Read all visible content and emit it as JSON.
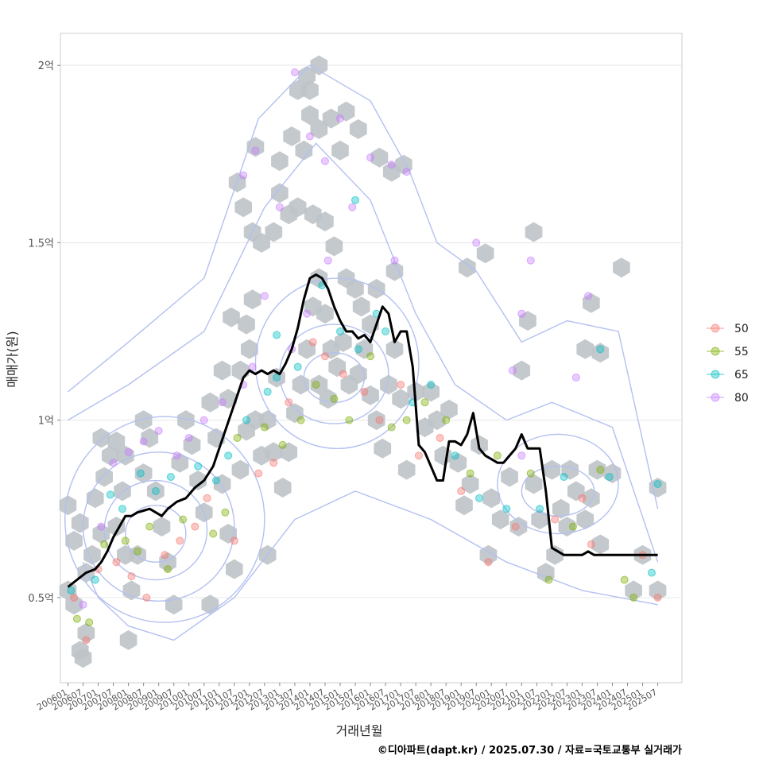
{
  "chart_data": {
    "type": "scatter",
    "xlabel": "거래년월",
    "ylabel": "매매가(원)",
    "caption": "©디아파트(dapt.kr) / 2025.07.30 / 자료=국토교통부 실거래가",
    "x_tick_labels": [
      "200601",
      "200607",
      "200701",
      "200707",
      "200801",
      "200807",
      "200901",
      "200907",
      "201001",
      "201007",
      "201101",
      "201107",
      "201201",
      "201207",
      "201301",
      "201307",
      "201401",
      "201407",
      "201501",
      "201507",
      "201601",
      "201607",
      "201701",
      "201707",
      "201801",
      "201807",
      "201901",
      "201907",
      "202001",
      "202007",
      "202101",
      "202107",
      "202201",
      "202207",
      "202301",
      "202307",
      "202401",
      "202407",
      "202501",
      "202507"
    ],
    "y_ticks": [
      {
        "value": 0.5,
        "label": "0.5억"
      },
      {
        "value": 1.0,
        "label": "1억"
      },
      {
        "value": 1.5,
        "label": "1.5억"
      },
      {
        "value": 2.0,
        "label": "2억"
      }
    ],
    "xlim": [
      2005.75,
      2026.3
    ],
    "ylim": [
      0.26,
      2.09
    ],
    "y_unit": "억",
    "grid": true,
    "legend_position": "right",
    "legend": [
      {
        "label": "50",
        "color": "#F8766D"
      },
      {
        "label": "55",
        "color": "#7CAE00"
      },
      {
        "value": "65",
        "label": "65",
        "color": "#00BFC4"
      },
      {
        "label": "80",
        "color": "#C77CFF"
      }
    ],
    "hexbin_color": "#BEC3C8",
    "contour_color": "#B4C0F0",
    "trend_line": {
      "color": "#000000",
      "x": [
        2006.0,
        2006.3,
        2006.6,
        2006.9,
        2007.1,
        2007.3,
        2007.5,
        2007.7,
        2007.9,
        2008.1,
        2008.3,
        2008.5,
        2008.7,
        2008.9,
        2009.1,
        2009.3,
        2009.6,
        2009.9,
        2010.2,
        2010.5,
        2010.8,
        2011.0,
        2011.2,
        2011.4,
        2011.6,
        2011.8,
        2012.0,
        2012.2,
        2012.4,
        2012.6,
        2012.8,
        2013.0,
        2013.2,
        2013.4,
        2013.6,
        2013.8,
        2014.0,
        2014.2,
        2014.4,
        2014.6,
        2014.8,
        2015.0,
        2015.2,
        2015.4,
        2015.6,
        2015.8,
        2016.0,
        2016.2,
        2016.4,
        2016.6,
        2016.8,
        2017.0,
        2017.2,
        2017.4,
        2017.6,
        2017.8,
        2018.0,
        2018.2,
        2018.4,
        2018.6,
        2018.8,
        2019.0,
        2019.2,
        2019.4,
        2019.6,
        2019.8,
        2020.0,
        2020.2,
        2020.4,
        2020.6,
        2020.8,
        2021.0,
        2021.2,
        2021.4,
        2021.6,
        2021.8,
        2022.0,
        2022.2,
        2022.4,
        2022.6,
        2022.8,
        2023.0,
        2023.2,
        2023.4,
        2023.6,
        2023.8,
        2024.0,
        2024.2,
        2024.4,
        2024.6,
        2024.8,
        2025.0,
        2025.2,
        2025.5
      ],
      "y": [
        0.53,
        0.55,
        0.57,
        0.58,
        0.6,
        0.63,
        0.67,
        0.7,
        0.73,
        0.73,
        0.74,
        0.745,
        0.75,
        0.74,
        0.73,
        0.75,
        0.77,
        0.78,
        0.81,
        0.83,
        0.87,
        0.92,
        0.97,
        1.02,
        1.07,
        1.12,
        1.14,
        1.13,
        1.14,
        1.13,
        1.14,
        1.13,
        1.16,
        1.2,
        1.26,
        1.34,
        1.4,
        1.41,
        1.4,
        1.37,
        1.32,
        1.28,
        1.25,
        1.25,
        1.23,
        1.24,
        1.22,
        1.27,
        1.32,
        1.3,
        1.22,
        1.25,
        1.25,
        1.15,
        0.93,
        0.91,
        0.87,
        0.83,
        0.83,
        0.94,
        0.94,
        0.93,
        0.96,
        1.02,
        0.92,
        0.9,
        0.89,
        0.88,
        0.88,
        0.9,
        0.92,
        0.96,
        0.92,
        0.92,
        0.92,
        0.8,
        0.64,
        0.63,
        0.62,
        0.62,
        0.62,
        0.62,
        0.63,
        0.62,
        0.62,
        0.62,
        0.62,
        0.62,
        0.62,
        0.62,
        0.62,
        0.62,
        0.62,
        0.62
      ]
    },
    "hex_cells": [
      [
        2006.0,
        0.52
      ],
      [
        2006.2,
        0.48
      ],
      [
        2006.0,
        0.76
      ],
      [
        2006.2,
        0.66
      ],
      [
        2006.4,
        0.71
      ],
      [
        2006.6,
        0.57
      ],
      [
        2006.4,
        0.35
      ],
      [
        2006.6,
        0.4
      ],
      [
        2006.5,
        0.33
      ],
      [
        2006.8,
        0.62
      ],
      [
        2006.9,
        0.78
      ],
      [
        2007.1,
        0.68
      ],
      [
        2007.2,
        0.84
      ],
      [
        2007.4,
        0.9
      ],
      [
        2007.1,
        0.95
      ],
      [
        2007.6,
        0.94
      ],
      [
        2007.9,
        0.9
      ],
      [
        2007.8,
        0.8
      ],
      [
        2007.6,
        0.7
      ],
      [
        2007.9,
        0.62
      ],
      [
        2008.1,
        0.52
      ],
      [
        2008.3,
        0.62
      ],
      [
        2008.0,
        0.38
      ],
      [
        2008.5,
        0.85
      ],
      [
        2008.7,
        0.95
      ],
      [
        2008.5,
        1.0
      ],
      [
        2008.9,
        0.8
      ],
      [
        2009.1,
        0.7
      ],
      [
        2009.3,
        0.6
      ],
      [
        2009.5,
        0.48
      ],
      [
        2009.7,
        0.88
      ],
      [
        2009.9,
        1.0
      ],
      [
        2010.1,
        0.93
      ],
      [
        2010.3,
        0.83
      ],
      [
        2010.5,
        0.74
      ],
      [
        2010.7,
        1.05
      ],
      [
        2010.9,
        0.95
      ],
      [
        2011.1,
        0.82
      ],
      [
        2011.3,
        0.68
      ],
      [
        2011.5,
        0.58
      ],
      [
        2011.7,
        0.86
      ],
      [
        2011.9,
        0.97
      ],
      [
        2010.7,
        0.48
      ],
      [
        2011.1,
        1.14
      ],
      [
        2011.3,
        1.06
      ],
      [
        2011.4,
        1.29
      ],
      [
        2011.7,
        1.14
      ],
      [
        2011.9,
        1.27
      ],
      [
        2012.1,
        1.34
      ],
      [
        2012.0,
        1.2
      ],
      [
        2012.2,
        1.0
      ],
      [
        2012.4,
        0.9
      ],
      [
        2012.6,
        1.0
      ],
      [
        2012.8,
        0.91
      ],
      [
        2012.9,
        1.12
      ],
      [
        2012.6,
        0.62
      ],
      [
        2013.1,
        0.81
      ],
      [
        2013.3,
        0.91
      ],
      [
        2013.5,
        1.02
      ],
      [
        2013.7,
        1.1
      ],
      [
        2013.9,
        1.2
      ],
      [
        2014.1,
        1.32
      ],
      [
        2014.3,
        1.4
      ],
      [
        2014.5,
        1.3
      ],
      [
        2014.7,
        1.2
      ],
      [
        2014.3,
        1.1
      ],
      [
        2014.6,
        1.06
      ],
      [
        2014.9,
        1.15
      ],
      [
        2015.1,
        1.22
      ],
      [
        2015.3,
        1.1
      ],
      [
        2015.6,
        1.13
      ],
      [
        2015.8,
        1.2
      ],
      [
        2016.0,
        1.07
      ],
      [
        2016.2,
        1.0
      ],
      [
        2016.4,
        0.92
      ],
      [
        2016.6,
        1.1
      ],
      [
        2016.8,
        1.2
      ],
      [
        2017.0,
        1.06
      ],
      [
        2017.2,
        0.86
      ],
      [
        2017.5,
        1.08
      ],
      [
        2017.8,
        0.98
      ],
      [
        2018.0,
        1.08
      ],
      [
        2018.2,
        1.0
      ],
      [
        2018.4,
        0.9
      ],
      [
        2018.6,
        1.03
      ],
      [
        2018.9,
        0.88
      ],
      [
        2019.1,
        0.76
      ],
      [
        2019.3,
        0.82
      ],
      [
        2019.6,
        0.93
      ],
      [
        2019.9,
        0.62
      ],
      [
        2020.0,
        0.78
      ],
      [
        2020.3,
        0.72
      ],
      [
        2020.6,
        0.84
      ],
      [
        2020.9,
        0.7
      ],
      [
        2021.0,
        1.14
      ],
      [
        2021.2,
        1.28
      ],
      [
        2021.4,
        0.82
      ],
      [
        2021.6,
        0.72
      ],
      [
        2021.8,
        0.57
      ],
      [
        2022.1,
        0.62
      ],
      [
        2022.0,
        0.86
      ],
      [
        2022.3,
        0.75
      ],
      [
        2022.5,
        0.7
      ],
      [
        2022.6,
        0.86
      ],
      [
        2022.8,
        0.8
      ],
      [
        2023.1,
        0.72
      ],
      [
        2023.3,
        0.78
      ],
      [
        2023.5,
        0.86
      ],
      [
        2023.6,
        0.65
      ],
      [
        2023.3,
        1.33
      ],
      [
        2023.6,
        1.19
      ],
      [
        2024.0,
        0.85
      ],
      [
        2024.7,
        0.52
      ],
      [
        2025.0,
        0.62
      ],
      [
        2025.5,
        0.81
      ],
      [
        2025.5,
        0.52
      ],
      [
        2024.3,
        1.43
      ],
      [
        2019.8,
        1.47
      ],
      [
        2019.2,
        1.43
      ],
      [
        2016.8,
        1.42
      ],
      [
        2016.2,
        1.37
      ],
      [
        2015.7,
        1.32
      ],
      [
        2015.2,
        1.4
      ],
      [
        2014.8,
        1.49
      ],
      [
        2014.5,
        1.56
      ],
      [
        2014.1,
        1.58
      ],
      [
        2013.6,
        1.6
      ],
      [
        2013.3,
        1.58
      ],
      [
        2013.0,
        1.64
      ],
      [
        2012.8,
        1.53
      ],
      [
        2012.4,
        1.5
      ],
      [
        2012.1,
        1.53
      ],
      [
        2011.8,
        1.6
      ],
      [
        2011.6,
        1.67
      ],
      [
        2012.2,
        1.77
      ],
      [
        2013.0,
        1.73
      ],
      [
        2013.4,
        1.8
      ],
      [
        2013.8,
        1.76
      ],
      [
        2014.0,
        1.86
      ],
      [
        2014.3,
        1.82
      ],
      [
        2014.7,
        1.85
      ],
      [
        2015.0,
        1.76
      ],
      [
        2015.2,
        1.87
      ],
      [
        2015.6,
        1.82
      ],
      [
        2016.3,
        1.74
      ],
      [
        2016.7,
        1.7
      ],
      [
        2017.1,
        1.72
      ],
      [
        2013.6,
        1.93
      ],
      [
        2013.9,
        1.97
      ],
      [
        2014.3,
        2.0
      ],
      [
        2014.0,
        1.93
      ],
      [
        2015.5,
        1.37
      ],
      [
        2016.0,
        1.27
      ],
      [
        2021.4,
        1.53
      ],
      [
        2023.1,
        1.2
      ]
    ],
    "points": [
      [
        2006.1,
        0.52,
        65
      ],
      [
        2006.2,
        0.5,
        50
      ],
      [
        2006.3,
        0.44,
        55
      ],
      [
        2006.5,
        0.48,
        80
      ],
      [
        2006.6,
        0.38,
        50
      ],
      [
        2006.7,
        0.43,
        55
      ],
      [
        2006.9,
        0.55,
        65
      ],
      [
        2007.0,
        0.58,
        50
      ],
      [
        2007.1,
        0.7,
        80
      ],
      [
        2007.2,
        0.65,
        55
      ],
      [
        2007.4,
        0.79,
        65
      ],
      [
        2007.5,
        0.88,
        80
      ],
      [
        2007.6,
        0.6,
        50
      ],
      [
        2007.8,
        0.75,
        65
      ],
      [
        2007.9,
        0.66,
        55
      ],
      [
        2008.0,
        0.91,
        80
      ],
      [
        2008.1,
        0.56,
        50
      ],
      [
        2008.3,
        0.63,
        55
      ],
      [
        2008.4,
        0.85,
        65
      ],
      [
        2008.5,
        0.94,
        80
      ],
      [
        2008.6,
        0.5,
        50
      ],
      [
        2008.7,
        0.7,
        55
      ],
      [
        2008.9,
        0.8,
        65
      ],
      [
        2009.0,
        0.97,
        80
      ],
      [
        2009.2,
        0.62,
        50
      ],
      [
        2009.3,
        0.58,
        55
      ],
      [
        2009.4,
        0.84,
        65
      ],
      [
        2009.6,
        0.9,
        80
      ],
      [
        2009.7,
        0.66,
        50
      ],
      [
        2009.8,
        0.72,
        55
      ],
      [
        2010.0,
        0.95,
        80
      ],
      [
        2010.2,
        0.7,
        50
      ],
      [
        2010.3,
        0.87,
        65
      ],
      [
        2010.5,
        1.0,
        80
      ],
      [
        2010.6,
        0.78,
        50
      ],
      [
        2010.8,
        0.68,
        55
      ],
      [
        2010.9,
        0.83,
        65
      ],
      [
        2011.1,
        1.05,
        80
      ],
      [
        2011.2,
        0.74,
        55
      ],
      [
        2011.3,
        0.9,
        65
      ],
      [
        2011.5,
        0.66,
        50
      ],
      [
        2011.6,
        0.95,
        55
      ],
      [
        2011.8,
        1.1,
        80
      ],
      [
        2011.9,
        1.0,
        65
      ],
      [
        2012.1,
        1.15,
        80
      ],
      [
        2012.3,
        0.85,
        50
      ],
      [
        2012.5,
        0.98,
        55
      ],
      [
        2012.6,
        1.08,
        65
      ],
      [
        2012.8,
        0.88,
        50
      ],
      [
        2012.9,
        1.12,
        65
      ],
      [
        2013.1,
        0.93,
        55
      ],
      [
        2013.3,
        1.05,
        50
      ],
      [
        2013.4,
        1.2,
        80
      ],
      [
        2013.6,
        1.15,
        65
      ],
      [
        2013.7,
        1.0,
        55
      ],
      [
        2013.9,
        1.3,
        80
      ],
      [
        2014.1,
        1.22,
        50
      ],
      [
        2014.2,
        1.1,
        55
      ],
      [
        2014.4,
        1.38,
        65
      ],
      [
        2014.5,
        1.18,
        50
      ],
      [
        2014.6,
        1.45,
        80
      ],
      [
        2014.8,
        1.06,
        55
      ],
      [
        2015.0,
        1.25,
        65
      ],
      [
        2015.1,
        1.13,
        50
      ],
      [
        2015.3,
        1.0,
        55
      ],
      [
        2015.4,
        1.6,
        80
      ],
      [
        2015.6,
        1.2,
        65
      ],
      [
        2015.8,
        1.08,
        50
      ],
      [
        2016.0,
        1.18,
        55
      ],
      [
        2016.2,
        1.3,
        65
      ],
      [
        2016.3,
        1.0,
        50
      ],
      [
        2016.5,
        1.25,
        65
      ],
      [
        2016.7,
        0.98,
        55
      ],
      [
        2016.8,
        1.45,
        80
      ],
      [
        2017.0,
        1.1,
        50
      ],
      [
        2017.2,
        1.0,
        55
      ],
      [
        2017.4,
        1.05,
        65
      ],
      [
        2017.6,
        0.9,
        50
      ],
      [
        2017.8,
        1.05,
        55
      ],
      [
        2018.0,
        1.1,
        65
      ],
      [
        2018.3,
        0.95,
        50
      ],
      [
        2018.5,
        1.0,
        55
      ],
      [
        2018.8,
        0.9,
        65
      ],
      [
        2019.0,
        0.8,
        50
      ],
      [
        2019.3,
        0.85,
        55
      ],
      [
        2019.6,
        0.78,
        65
      ],
      [
        2019.9,
        0.6,
        50
      ],
      [
        2020.2,
        0.9,
        55
      ],
      [
        2020.5,
        0.75,
        65
      ],
      [
        2020.8,
        0.7,
        50
      ],
      [
        2021.0,
        0.9,
        80
      ],
      [
        2021.3,
        0.85,
        55
      ],
      [
        2021.6,
        0.75,
        65
      ],
      [
        2021.9,
        0.55,
        55
      ],
      [
        2022.1,
        0.72,
        50
      ],
      [
        2022.4,
        0.84,
        65
      ],
      [
        2022.7,
        0.7,
        55
      ],
      [
        2023.0,
        0.78,
        50
      ],
      [
        2023.3,
        0.65,
        50
      ],
      [
        2023.6,
        0.86,
        55
      ],
      [
        2023.9,
        0.84,
        65
      ],
      [
        2024.4,
        0.55,
        55
      ],
      [
        2024.7,
        0.5,
        55
      ],
      [
        2025.0,
        0.62,
        50
      ],
      [
        2025.3,
        0.57,
        65
      ],
      [
        2025.5,
        0.5,
        50
      ],
      [
        2025.5,
        0.82,
        65
      ],
      [
        2013.5,
        1.98,
        80
      ],
      [
        2014.0,
        1.8,
        80
      ],
      [
        2014.5,
        1.73,
        80
      ],
      [
        2015.0,
        1.85,
        80
      ],
      [
        2015.5,
        1.62,
        65
      ],
      [
        2016.0,
        1.74,
        80
      ],
      [
        2016.7,
        1.72,
        80
      ],
      [
        2017.2,
        1.7,
        80
      ],
      [
        2012.2,
        1.76,
        80
      ],
      [
        2011.8,
        1.69,
        80
      ],
      [
        2012.5,
        1.35,
        80
      ],
      [
        2012.9,
        1.24,
        65
      ],
      [
        2013.0,
        1.6,
        80
      ],
      [
        2019.5,
        1.5,
        80
      ],
      [
        2021.3,
        1.45,
        80
      ],
      [
        2022.8,
        1.12,
        80
      ],
      [
        2023.2,
        1.35,
        80
      ],
      [
        2023.6,
        1.2,
        65
      ],
      [
        2021.0,
        1.3,
        80
      ],
      [
        2020.7,
        1.14,
        80
      ]
    ]
  }
}
